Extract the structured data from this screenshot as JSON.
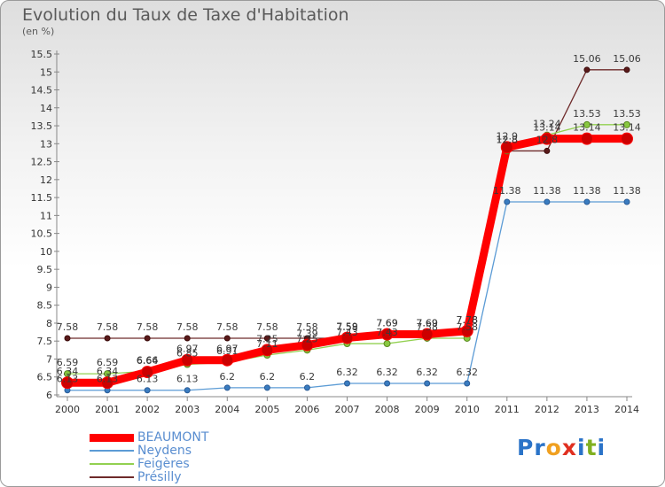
{
  "chart_data": {
    "type": "line",
    "title": "Evolution du Taux de Taxe d'Habitation",
    "subtitle": "(en %)",
    "x": [
      "2000",
      "2001",
      "2002",
      "2003",
      "2004",
      "2005",
      "2006",
      "2007",
      "2008",
      "2009",
      "2010",
      "2011",
      "2012",
      "2013",
      "2014"
    ],
    "ylim": [
      6,
      15.5
    ],
    "yticks": [
      "6",
      "6.5",
      "7",
      "7.5",
      "8",
      "8.5",
      "9",
      "9.5",
      "10",
      "10.5",
      "11",
      "11.5",
      "12",
      "12.5",
      "13",
      "13.5",
      "14",
      "14.5",
      "15",
      "15.5"
    ],
    "grid": false,
    "legend_position": "bottom-left",
    "series": [
      {
        "name": "BEAUMONT",
        "color": "#ff0000",
        "values": [
          6.34,
          6.34,
          6.64,
          6.97,
          6.97,
          7.25,
          7.39,
          7.59,
          7.69,
          7.69,
          7.78,
          12.9,
          13.14,
          13.14,
          13.14
        ]
      },
      {
        "name": "Neydens",
        "color": "#5b9bd5",
        "values": [
          6.13,
          6.13,
          6.13,
          6.13,
          6.2,
          6.2,
          6.2,
          6.32,
          6.32,
          6.32,
          6.32,
          11.38,
          11.38,
          11.38,
          11.38
        ]
      },
      {
        "name": "Feigères",
        "color": "#92d050",
        "values": [
          6.59,
          6.59,
          6.66,
          6.85,
          6.91,
          7.11,
          7.25,
          7.43,
          7.43,
          7.58,
          7.58,
          12.8,
          13.24,
          13.53,
          13.53
        ]
      },
      {
        "name": "Présilly",
        "color": "#6e2a2a",
        "values": [
          7.58,
          7.58,
          7.58,
          7.58,
          7.58,
          7.58,
          7.58,
          7.58,
          7.69,
          7.69,
          7.78,
          12.8,
          12.8,
          15.06,
          15.06
        ]
      }
    ]
  },
  "logo": {
    "letters": [
      {
        "ch": "P",
        "color": "#2a73c8"
      },
      {
        "ch": "r",
        "color": "#2a73c8"
      },
      {
        "ch": "o",
        "color": "#f0a020"
      },
      {
        "ch": "x",
        "color": "#e03020"
      },
      {
        "ch": "i",
        "color": "#2a73c8"
      },
      {
        "ch": "t",
        "color": "#80b020"
      },
      {
        "ch": "i",
        "color": "#2a73c8"
      }
    ]
  }
}
